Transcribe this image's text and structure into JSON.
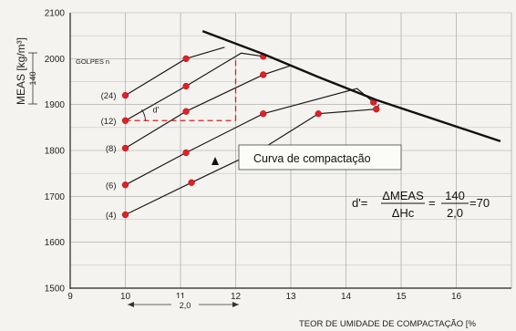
{
  "chart_data": {
    "type": "line",
    "ylabel": "MEAS [kg/m³]",
    "xlabel": "TEOR DE UMIDADE DE COMPACTAÇÃO [%",
    "xlim": [
      9,
      17
    ],
    "ylim": [
      1500,
      2100
    ],
    "x_ticks": [
      "9",
      "10",
      "11",
      "12",
      "13",
      "14",
      "15",
      "16"
    ],
    "y_ticks": [
      "1500",
      "1600",
      "1700",
      "1800",
      "1900",
      "2000",
      "2100"
    ],
    "grid": true,
    "legend_title": "GOLPES n",
    "series": [
      {
        "name": "(24)",
        "points": [
          [
            10.0,
            1920
          ],
          [
            11.1,
            2000
          ]
        ],
        "peak": [
          11.8,
          2025
        ]
      },
      {
        "name": "(12)",
        "points": [
          [
            10.0,
            1865
          ],
          [
            11.1,
            1940
          ],
          [
            12.5,
            2005
          ]
        ],
        "peak": [
          12.1,
          2012
        ]
      },
      {
        "name": "(8)",
        "points": [
          [
            10.0,
            1805
          ],
          [
            11.1,
            1885
          ],
          [
            12.5,
            1965
          ]
        ],
        "peak": [
          13.0,
          1985
        ]
      },
      {
        "name": "(6)",
        "points": [
          [
            10.0,
            1725
          ],
          [
            11.1,
            1795
          ],
          [
            12.5,
            1880
          ],
          [
            14.5,
            1905
          ]
        ],
        "peak": [
          14.2,
          1935
        ]
      },
      {
        "name": "(4)",
        "points": [
          [
            10.0,
            1660
          ],
          [
            11.2,
            1730
          ],
          [
            12.5,
            1805
          ],
          [
            13.5,
            1880
          ],
          [
            14.55,
            1890
          ]
        ],
        "peak": [
          14.6,
          1900
        ]
      }
    ],
    "compaction_curve": {
      "label": "Curva de compactação",
      "points": [
        [
          11.4,
          2060
        ],
        [
          12.5,
          2010
        ],
        [
          13.5,
          1960
        ],
        [
          14.55,
          1910
        ],
        [
          16.8,
          1820
        ]
      ]
    },
    "annotations": {
      "angle_label": "d'",
      "delta_meas": "140",
      "delta_hc": "2,0",
      "formula": {
        "lhs": "d'=",
        "num1": "ΔMEAS",
        "den1": "ΔHc",
        "eq": "=",
        "num2": "140",
        "den2": "2,0",
        "result": "=70"
      }
    }
  }
}
